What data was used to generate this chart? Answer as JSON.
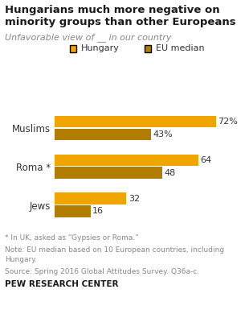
{
  "title_line1": "Hungarians much more negative on",
  "title_line2": "minority groups than other Europeans",
  "subtitle": "Unfavorable view of __ in our country",
  "categories": [
    "Muslims",
    "Roma *",
    "Jews"
  ],
  "hungary_values": [
    72,
    64,
    32
  ],
  "eu_values": [
    43,
    48,
    16
  ],
  "hungary_color": "#F0A500",
  "eu_color": "#B07D00",
  "label_hungary": "Hungary",
  "label_eu": "EU median",
  "value_labels_hungary": [
    "72%",
    "64",
    "32"
  ],
  "value_labels_eu": [
    "43%",
    "48",
    "16"
  ],
  "footnote1": "* In UK, asked as “Gypsies or Roma.”",
  "footnote2": "Note: EU median based on 10 European countries, including\nHungary.",
  "footnote3": "Source: Spring 2016 Global Attitudes Survey. Q36a-c.",
  "footnote4": "PEW RESEARCH CENTER",
  "title_color": "#1a1a1a",
  "subtitle_color": "#888888",
  "footnote_color": "#888888",
  "footnote4_color": "#1a1a1a",
  "xlim": [
    0,
    80
  ],
  "bar_height": 0.3,
  "bg_color": "#ffffff"
}
